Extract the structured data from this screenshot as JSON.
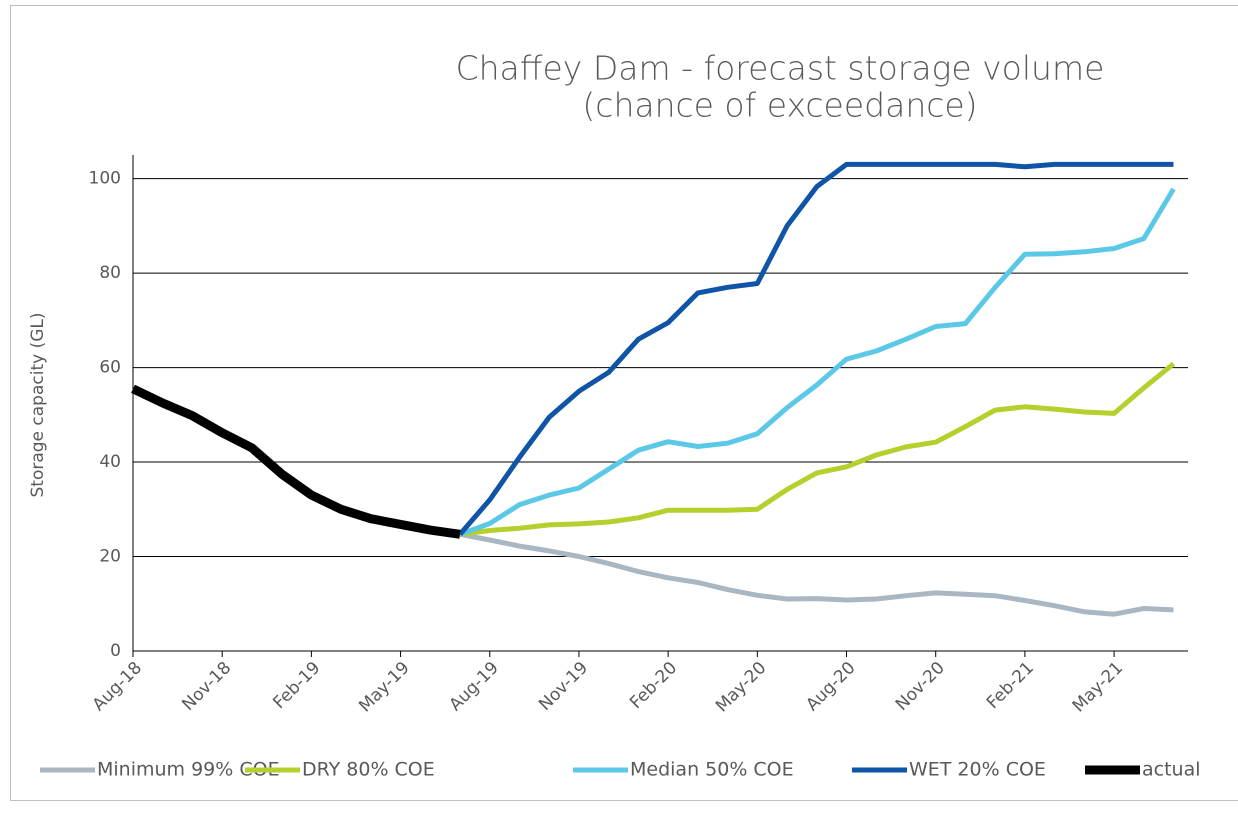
{
  "chart_data": {
    "type": "line",
    "title": [
      "Chaffey Dam - forecast storage volume",
      "(chance of exceedance)"
    ],
    "y_label": "Storage capacity (GL)",
    "categories": [
      "Aug-18",
      null,
      null,
      "Nov-18",
      null,
      null,
      "Feb-19",
      null,
      null,
      "May-19",
      null,
      null,
      "Aug-19",
      null,
      null,
      "Nov-19",
      null,
      null,
      "Feb-20",
      null,
      null,
      "May-20",
      null,
      null,
      "Aug-20",
      null,
      null,
      "Nov-20",
      null,
      null,
      "Feb-21",
      null,
      null,
      "May-21",
      null,
      null
    ],
    "ylim": [
      0,
      105
    ],
    "yticks": [
      0,
      20,
      40,
      60,
      80,
      100
    ],
    "grid": true,
    "legend": "bottom",
    "series": [
      {
        "name": "Minimum 99% COE",
        "color": "#a9b7c2",
        "width": 5,
        "values": [
          null,
          null,
          null,
          null,
          null,
          null,
          null,
          null,
          null,
          null,
          null,
          24.7,
          23.5,
          22.2,
          21.2,
          20,
          18.5,
          16.8,
          15.5,
          14.5,
          13,
          11.8,
          11,
          11.1,
          10.8,
          11,
          11.7,
          12.3,
          12,
          11.7,
          10.7,
          9.6,
          8.3,
          7.8,
          9,
          8.7
        ]
      },
      {
        "name": "DRY 80% COE",
        "color": "#b5cf2d",
        "width": 5,
        "values": [
          null,
          null,
          null,
          null,
          null,
          null,
          null,
          null,
          null,
          null,
          null,
          24.7,
          25.5,
          26,
          26.7,
          26.9,
          27.3,
          28.2,
          29.8,
          29.8,
          29.8,
          30,
          34.2,
          37.7,
          39,
          41.5,
          43.2,
          44.2,
          47.5,
          51,
          51.7,
          51.2,
          50.6,
          50.3,
          55.7,
          60.8
        ]
      },
      {
        "name": "Median 50% COE",
        "color": "#5bc8e8",
        "width": 5,
        "values": [
          null,
          null,
          null,
          null,
          null,
          null,
          null,
          null,
          null,
          null,
          null,
          24.7,
          27,
          31,
          33,
          34.5,
          38.5,
          42.5,
          44.3,
          43.3,
          44,
          46,
          51.5,
          56.3,
          61.8,
          63.5,
          66,
          68.7,
          69.3,
          77,
          84,
          84.1,
          84.5,
          85.2,
          87.3,
          97.8
        ]
      },
      {
        "name": "WET 20% COE",
        "color": "#0f54a6",
        "width": 5,
        "values": [
          null,
          null,
          null,
          null,
          null,
          null,
          null,
          null,
          null,
          null,
          null,
          24.7,
          32,
          41,
          49.5,
          55,
          59,
          66,
          69.5,
          75.8,
          77,
          77.8,
          90,
          98.3,
          103,
          103,
          103,
          103,
          103,
          103,
          102.5,
          103,
          103,
          103,
          103,
          103
        ]
      },
      {
        "name": "actual",
        "color": "#000000",
        "width": 9,
        "values": [
          55.5,
          52.5,
          49.8,
          46.2,
          43,
          37.5,
          33,
          30,
          28,
          26.8,
          25.6,
          24.7,
          null,
          null,
          null,
          null,
          null,
          null,
          null,
          null,
          null,
          null,
          null,
          null,
          null,
          null,
          null,
          null,
          null,
          null,
          null,
          null,
          null,
          null,
          null,
          null
        ]
      }
    ]
  }
}
